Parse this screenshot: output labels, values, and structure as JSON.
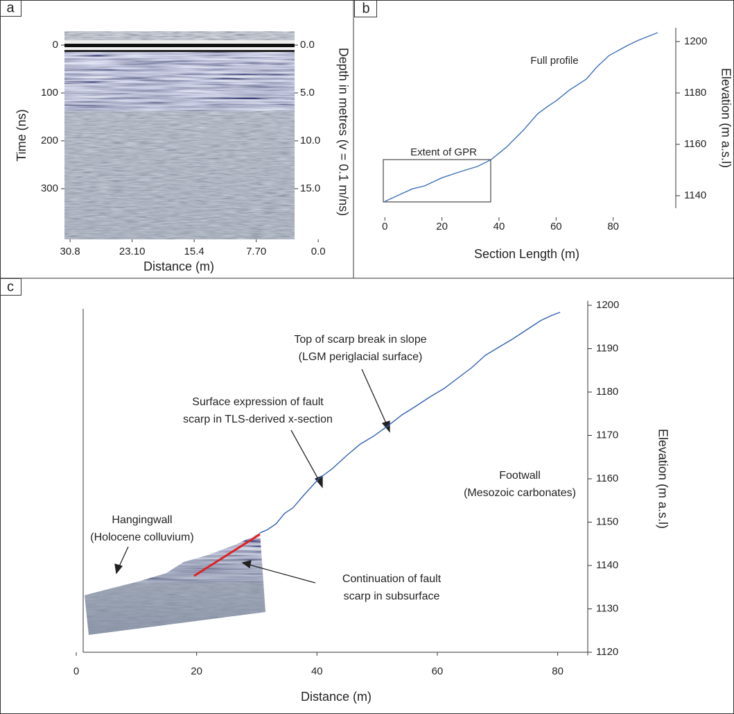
{
  "chart_data": [
    {
      "type": "radargram",
      "panel_label": "a",
      "xlabel": "Distance (m)",
      "ylabel": "Time (ns)",
      "y2label": "Depth in metres (v = 0.1 m/ns)",
      "xlim": [
        31.5,
        -0.5
      ],
      "xticks": [
        30.8,
        {
          "value": 23.1,
          "label": "23.10"
        },
        15.4,
        {
          "value": 7.7,
          "label": "7.70"
        },
        {
          "value": 0,
          "label": "0.0"
        }
      ],
      "ylim": [
        406,
        -29
      ],
      "yticks": [
        0,
        100,
        200,
        300
      ],
      "y2lim": [
        20.3,
        -1.45
      ],
      "y2ticks": [
        {
          "value": 0,
          "label": "0.0"
        },
        {
          "value": 5,
          "label": "5.0"
        },
        {
          "value": 10,
          "label": "10.0"
        },
        {
          "value": 15,
          "label": "15.0"
        }
      ]
    },
    {
      "type": "line",
      "panel_label": "b",
      "xlabel": "Section Length (m)",
      "ylabel": "Elevation (m a.s.l)",
      "yaxis_position": "right",
      "annotations": [
        "Extent of GPR",
        "Full profile"
      ],
      "xlim": [
        -2.5,
        100
      ],
      "xticks": [
        0,
        20,
        40,
        60,
        80
      ],
      "ylim": [
        1133,
        1207
      ],
      "yticks": [
        1140,
        1160,
        1180,
        1200
      ],
      "color": "#3a6fb5",
      "x": [
        0,
        4.9,
        9.7,
        13.9,
        20,
        26,
        32.4,
        37.2,
        42.6,
        48.7,
        53.5,
        57.2,
        60.1,
        64.5,
        70.6,
        74.2,
        78.6,
        85.2,
        88.8,
        95.6
      ],
      "values": [
        1137.8,
        1140.3,
        1142.7,
        1143.8,
        1147,
        1149.2,
        1151.4,
        1154,
        1158.9,
        1165.7,
        1171.9,
        1174.9,
        1177,
        1181,
        1185.4,
        1190,
        1194.6,
        1198.6,
        1200.5,
        1203.5
      ]
    },
    {
      "type": "line",
      "panel_label": "c",
      "xlabel": "Distance (m)",
      "ylabel": "Elevation (m a.s.l)",
      "yaxis_position": "right",
      "annotations": [
        [
          "Top of scarp break in slope",
          "(LGM periglacial surface)"
        ],
        [
          "Surface expression of fault",
          "scarp in TLS-derived x-section"
        ],
        [
          "Footwall",
          "(Mesozoic carbonates)"
        ],
        [
          "Hangingwall",
          "(Holocene colluvium)"
        ],
        [
          "Continuation of fault",
          "scarp in subsurface"
        ]
      ],
      "xlim": [
        0,
        85
      ],
      "xticks": [
        0,
        20,
        40,
        60,
        80
      ],
      "ylim": [
        1118,
        1202
      ],
      "yticks": [
        1120,
        1130,
        1140,
        1150,
        1160,
        1170,
        1180,
        1190,
        1200
      ],
      "color": "#2f5fb0",
      "x": [
        30.5,
        31.7,
        33.2,
        34.6,
        36,
        38,
        40.3,
        42.6,
        44.9,
        47.2,
        49.5,
        51.8,
        54.1,
        56.5,
        58.8,
        61.1,
        63.4,
        65.7,
        68,
        70.3,
        72.6,
        74.9,
        77.2,
        78.9,
        80.4
      ],
      "values": [
        1147.5,
        1148.2,
        1149.6,
        1152,
        1153.3,
        1156.5,
        1160,
        1162.4,
        1165.3,
        1168,
        1169.9,
        1172.2,
        1174.7,
        1176.8,
        1178.9,
        1180.8,
        1183.2,
        1185.6,
        1188.5,
        1190.4,
        1192.3,
        1194.4,
        1196.5,
        1197.6,
        1198.4
      ]
    }
  ]
}
